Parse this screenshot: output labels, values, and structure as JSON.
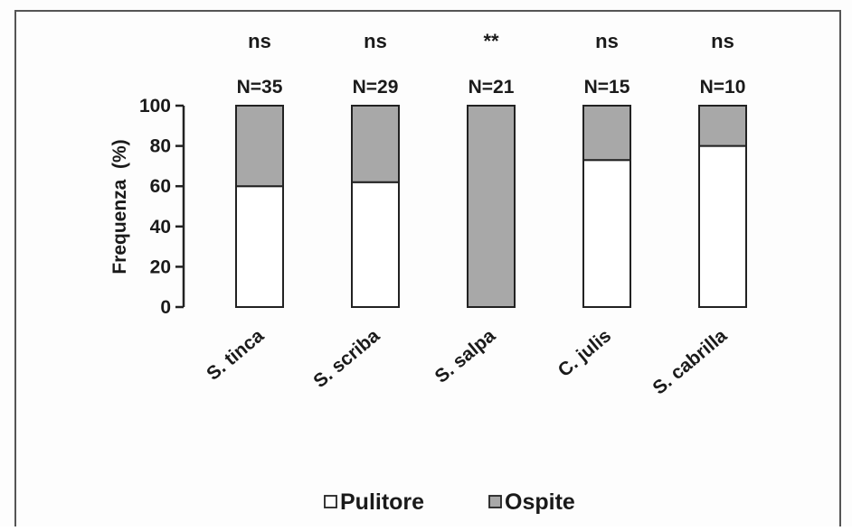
{
  "chart_data": {
    "type": "bar",
    "stacked": true,
    "percent": true,
    "title": "",
    "xlabel": "",
    "ylabel": "Frequenza  (%)",
    "ylim": [
      0,
      100
    ],
    "yticks": [
      0,
      20,
      40,
      60,
      80,
      100
    ],
    "grid": false,
    "legend_position": "bottom-center",
    "categories": [
      "S. tinca",
      "S. scriba",
      "S. salpa",
      "C. julis",
      "S. cabrilla"
    ],
    "sample_sizes": [
      "N=35",
      "N=29",
      "N=21",
      "N=15",
      "N=10"
    ],
    "significance": [
      "ns",
      "ns",
      "**",
      "ns",
      "ns"
    ],
    "series": [
      {
        "name": "Pulitore",
        "values": [
          60,
          62,
          0,
          73,
          80
        ],
        "color": "#ffffff"
      },
      {
        "name": "Ospite",
        "values": [
          40,
          38,
          100,
          27,
          20
        ],
        "color": "#a8a8a8"
      }
    ]
  }
}
